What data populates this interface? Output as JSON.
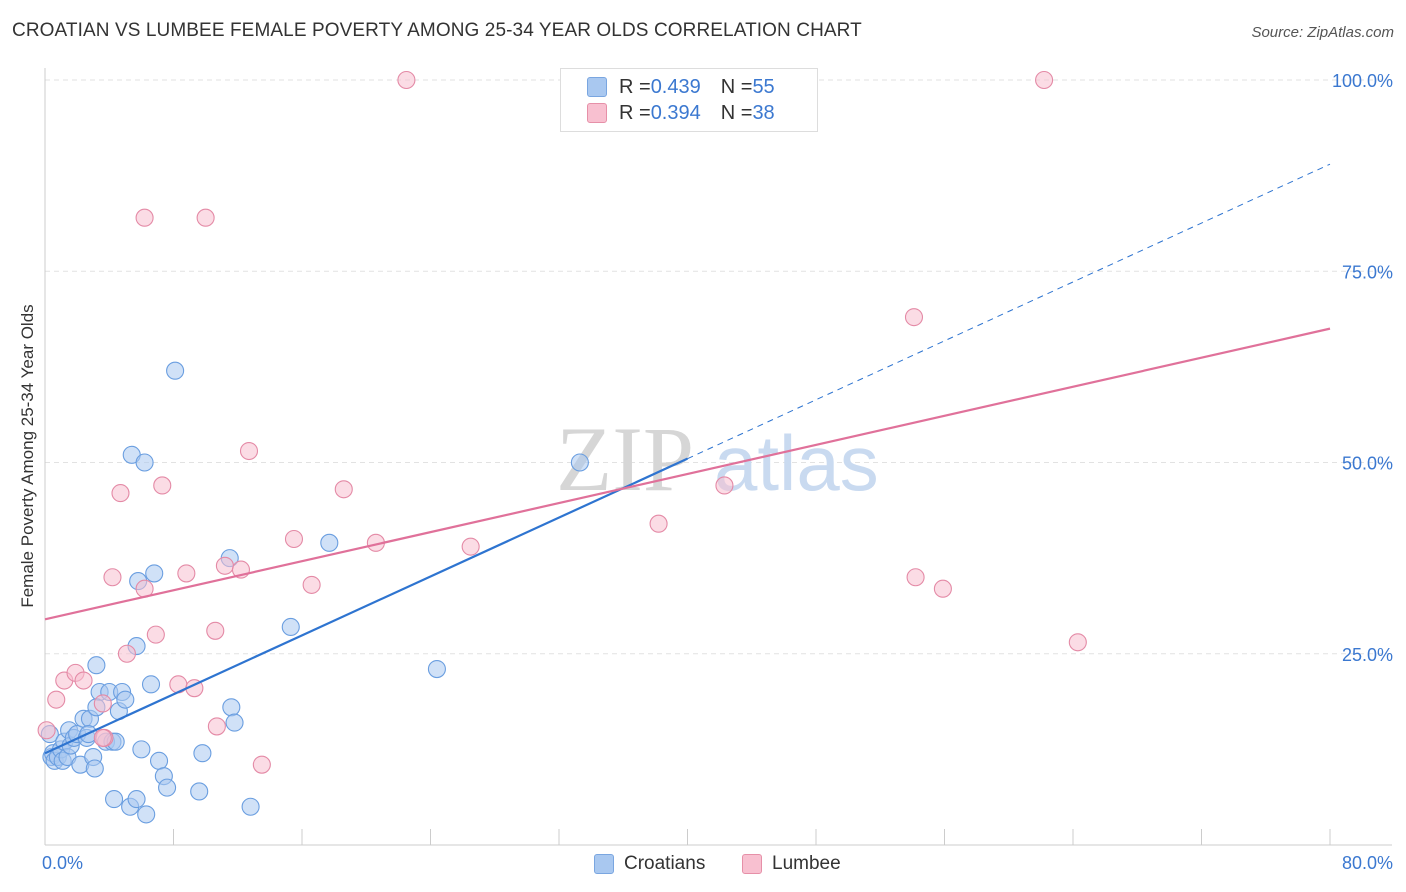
{
  "title": "CROATIAN VS LUMBEE FEMALE POVERTY AMONG 25-34 YEAR OLDS CORRELATION CHART",
  "source": "Source: ZipAtlas.com",
  "watermark": {
    "zip": "ZIP",
    "atlas": "atlas"
  },
  "legend_top": [
    {
      "r_label": "R = ",
      "r_value": "0.439",
      "n_label": "N = ",
      "n_value": "55",
      "color": "#a9c8f0",
      "border": "#7aa6e0"
    },
    {
      "r_label": "R = ",
      "r_value": "0.394",
      "n_label": "N = ",
      "n_value": "38",
      "color": "#f8c0d0",
      "border": "#e690a8"
    }
  ],
  "legend_bottom": [
    {
      "label": "Croatians",
      "color": "#a9c8f0",
      "border": "#7aa6e0"
    },
    {
      "label": "Lumbee",
      "color": "#f8c0d0",
      "border": "#e690a8"
    }
  ],
  "chart_data": {
    "type": "scatter",
    "xlabel": "",
    "ylabel": "Female Poverty Among 25-34 Year Olds",
    "xlim": [
      0,
      80
    ],
    "ylim": [
      0,
      100
    ],
    "x_tick_labels": [
      "0.0%",
      "80.0%"
    ],
    "y_ticks": [
      25,
      50,
      75,
      100
    ],
    "y_tick_labels": [
      "25.0%",
      "50.0%",
      "75.0%",
      "100.0%"
    ],
    "grid": true,
    "series": [
      {
        "name": "Croatians",
        "color": "#6a9ee0",
        "fill": "#a9c8f0",
        "points": [
          [
            0.3,
            14.5
          ],
          [
            0.4,
            11.5
          ],
          [
            0.5,
            12.0
          ],
          [
            0.6,
            11.0
          ],
          [
            0.8,
            11.5
          ],
          [
            1.0,
            12.5
          ],
          [
            1.1,
            11.0
          ],
          [
            1.2,
            13.5
          ],
          [
            1.4,
            11.5
          ],
          [
            1.5,
            15.0
          ],
          [
            1.6,
            13.0
          ],
          [
            1.8,
            14.0
          ],
          [
            2.0,
            14.5
          ],
          [
            2.2,
            10.5
          ],
          [
            2.4,
            16.5
          ],
          [
            2.6,
            14.0
          ],
          [
            2.8,
            16.5
          ],
          [
            3.0,
            11.5
          ],
          [
            3.1,
            10.0
          ],
          [
            3.2,
            23.5
          ],
          [
            3.4,
            20.0
          ],
          [
            3.8,
            13.5
          ],
          [
            4.0,
            20.0
          ],
          [
            4.2,
            13.5
          ],
          [
            4.4,
            13.5
          ],
          [
            4.6,
            17.5
          ],
          [
            4.8,
            20.0
          ],
          [
            5.0,
            19.0
          ],
          [
            5.4,
            51.0
          ],
          [
            5.7,
            26.0
          ],
          [
            5.8,
            34.5
          ],
          [
            6.0,
            12.5
          ],
          [
            6.2,
            50.0
          ],
          [
            6.6,
            21.0
          ],
          [
            6.8,
            35.5
          ],
          [
            7.1,
            11.0
          ],
          [
            7.4,
            9.0
          ],
          [
            8.1,
            62.0
          ],
          [
            9.6,
            7.0
          ],
          [
            9.8,
            12.0
          ],
          [
            11.5,
            37.5
          ],
          [
            11.6,
            18.0
          ],
          [
            11.8,
            16.0
          ],
          [
            12.8,
            5.0
          ],
          [
            15.3,
            28.5
          ],
          [
            17.7,
            39.5
          ],
          [
            24.4,
            23.0
          ],
          [
            33.3,
            50.0
          ],
          [
            4.3,
            6.0
          ],
          [
            5.3,
            5.0
          ],
          [
            5.7,
            6.0
          ],
          [
            6.3,
            4.0
          ],
          [
            7.6,
            7.5
          ],
          [
            3.2,
            18.0
          ],
          [
            2.7,
            14.5
          ]
        ]
      },
      {
        "name": "Lumbee",
        "color": "#e48aa6",
        "fill": "#f8c0d0",
        "points": [
          [
            0.1,
            15.0
          ],
          [
            0.7,
            19.0
          ],
          [
            1.2,
            21.5
          ],
          [
            1.9,
            22.5
          ],
          [
            2.4,
            21.5
          ],
          [
            3.6,
            18.5
          ],
          [
            3.7,
            14.0
          ],
          [
            4.2,
            35.0
          ],
          [
            4.7,
            46.0
          ],
          [
            5.1,
            25.0
          ],
          [
            6.2,
            33.5
          ],
          [
            6.2,
            82.0
          ],
          [
            6.9,
            27.5
          ],
          [
            7.3,
            47.0
          ],
          [
            8.3,
            21.0
          ],
          [
            8.8,
            35.5
          ],
          [
            9.3,
            20.5
          ],
          [
            10.0,
            82.0
          ],
          [
            10.6,
            28.0
          ],
          [
            10.7,
            15.5
          ],
          [
            11.2,
            36.5
          ],
          [
            12.2,
            36.0
          ],
          [
            12.7,
            51.5
          ],
          [
            13.5,
            10.5
          ],
          [
            15.5,
            40.0
          ],
          [
            16.6,
            34.0
          ],
          [
            18.6,
            46.5
          ],
          [
            20.6,
            39.5
          ],
          [
            22.5,
            100.0
          ],
          [
            26.5,
            39.0
          ],
          [
            38.2,
            42.0
          ],
          [
            42.3,
            47.0
          ],
          [
            54.1,
            69.0
          ],
          [
            54.2,
            35.0
          ],
          [
            55.9,
            33.5
          ],
          [
            62.2,
            100.0
          ],
          [
            64.3,
            26.5
          ],
          [
            3.6,
            14.0
          ]
        ]
      }
    ],
    "trend_lines": [
      {
        "series": "Croatians",
        "x": [
          0,
          40,
          80
        ],
        "y": [
          12.0,
          50.5,
          89.0
        ],
        "solid_until": 40,
        "color": "#2e74d0"
      },
      {
        "series": "Lumbee",
        "x": [
          0,
          80
        ],
        "y": [
          29.5,
          67.5
        ],
        "color": "#e0719a"
      }
    ]
  }
}
